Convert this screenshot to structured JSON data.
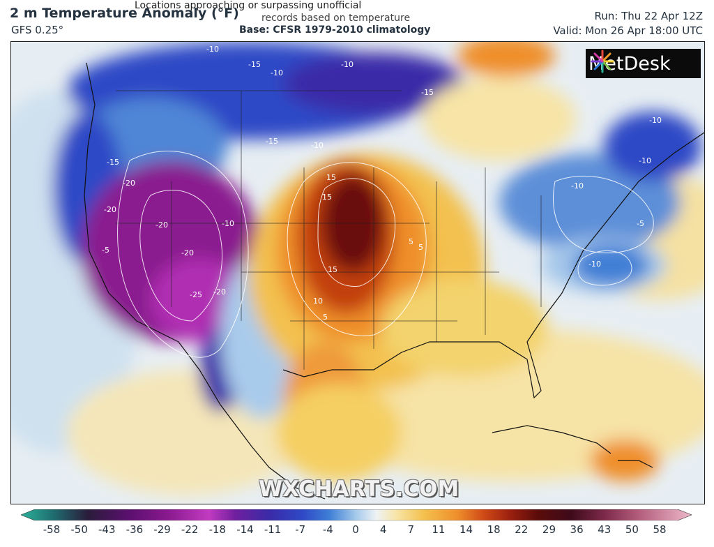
{
  "header": {
    "title": "2 m Temperature Anomaly (°F)",
    "model": "GFS 0.25°",
    "notice_line1": "Locations approaching or surpassing unofficial",
    "notice_line2": "records based on temperature",
    "base": "Base: CFSR 1979-2010 climatology",
    "run": "Run: Thu 22 Apr 12Z",
    "valid": "Valid: Mon 26 Apr 18:00 UTC"
  },
  "logo": {
    "text": "MetDesk"
  },
  "watermark": "WXCHARTS.COM",
  "colorbar": {
    "ticks": [
      "-58",
      "-50",
      "-43",
      "-36",
      "-29",
      "-22",
      "-18",
      "-14",
      "-11",
      "-7",
      "-4",
      "0",
      "4",
      "7",
      "11",
      "14",
      "18",
      "22",
      "29",
      "36",
      "43",
      "50",
      "58"
    ],
    "colors": [
      "#2bb39a",
      "#1f5a6e",
      "#2a1c3a",
      "#5a0f6e",
      "#8a1a8f",
      "#c23bc0",
      "#6f1f9e",
      "#3a2aa8",
      "#2f49c6",
      "#3f7fd6",
      "#8fc1ec",
      "#e8f0f6",
      "#f7e4a6",
      "#f3c14f",
      "#ef8f2c",
      "#d04a17",
      "#9a1f0f",
      "#5b0c0a",
      "#3e0a1a",
      "#7d2a4a",
      "#b15c7a",
      "#d88fa8",
      "#efb8cb"
    ]
  },
  "contour_labels": [
    "-10",
    "-15",
    "-10",
    "-10",
    "-15",
    "-15",
    "-10",
    "-15",
    "-20",
    "-20",
    "-20",
    "-20",
    "-25",
    "-20",
    "-10",
    "15",
    "15",
    "15",
    "10",
    "5",
    "-10",
    "-10",
    "-5",
    "-10",
    "-10",
    "-5",
    "5",
    "5"
  ]
}
